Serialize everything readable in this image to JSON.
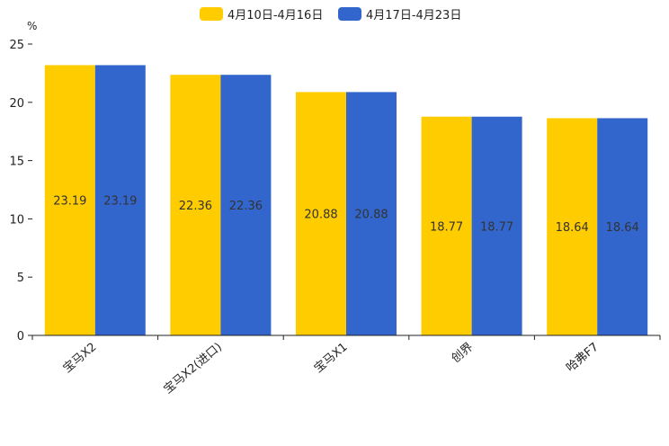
{
  "chart_data": {
    "type": "bar",
    "title": "",
    "xlabel": "",
    "ylabel": "",
    "unit": "%",
    "ylim": [
      0,
      25
    ],
    "yticks": [
      0,
      5,
      10,
      15,
      20,
      25
    ],
    "legend_position": "top-center",
    "grid": false,
    "categories": [
      "宝马X2",
      "宝马X2(进口)",
      "宝马X1",
      "创界",
      "哈弗F7"
    ],
    "series": [
      {
        "name": "4月10日-4月16日",
        "color": "#FFCC00",
        "values": [
          23.19,
          22.36,
          20.88,
          18.77,
          18.64
        ]
      },
      {
        "name": "4月17日-4月23日",
        "color": "#3366CC",
        "values": [
          23.19,
          22.36,
          20.88,
          18.77,
          18.64
        ]
      }
    ]
  }
}
